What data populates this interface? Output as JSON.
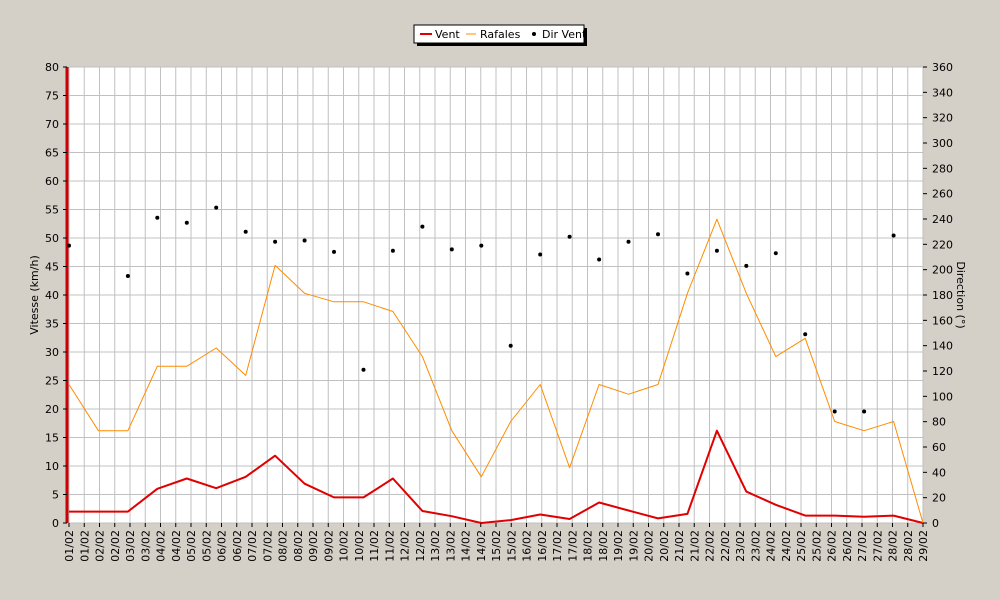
{
  "chart_data": {
    "type": "line",
    "x": [
      "01/02",
      "01/02",
      "02/02",
      "03/02",
      "04/02",
      "05/02",
      "06/02",
      "07/02",
      "08/02",
      "09/02",
      "10/02",
      "11/02",
      "12/02",
      "13/02",
      "14/02",
      "15/02",
      "16/02",
      "17/02",
      "18/02",
      "19/02",
      "20/02",
      "21/02",
      "22/02",
      "23/02",
      "24/02",
      "25/02",
      "26/02",
      "27/02",
      "28/02",
      "29/02"
    ],
    "x_tick_labels": [
      "01/02",
      "01/02",
      "02/02",
      "02/02",
      "03/02",
      "03/02",
      "04/02",
      "04/02",
      "05/02",
      "05/02",
      "06/02",
      "06/02",
      "07/02",
      "07/02",
      "08/02",
      "08/02",
      "09/02",
      "09/02",
      "10/02",
      "10/02",
      "11/02",
      "11/02",
      "12/02",
      "12/02",
      "13/02",
      "13/02",
      "14/02",
      "14/02",
      "15/02",
      "15/02",
      "16/02",
      "16/02",
      "17/02",
      "17/02",
      "18/02",
      "18/02",
      "19/02",
      "19/02",
      "20/02",
      "20/02",
      "21/02",
      "21/02",
      "22/02",
      "22/02",
      "23/02",
      "23/02",
      "24/02",
      "24/02",
      "25/02",
      "25/02",
      "26/02",
      "26/02",
      "27/02",
      "27/02",
      "28/02",
      "28/02",
      "29/02"
    ],
    "ylabel": "Vitesse (km/h)",
    "ylim": [
      0,
      80
    ],
    "y_ticks": [
      0,
      5,
      10,
      15,
      20,
      25,
      30,
      35,
      40,
      45,
      50,
      55,
      60,
      65,
      70,
      75,
      80
    ],
    "y2label": "Direction (°)",
    "y2lim": [
      0,
      360
    ],
    "y2_ticks": [
      0,
      20,
      40,
      60,
      80,
      100,
      120,
      140,
      160,
      180,
      200,
      220,
      240,
      260,
      280,
      300,
      320,
      340,
      360
    ],
    "grid": true,
    "legend_position": "top-center",
    "series": [
      {
        "name": "Vent",
        "kind": "line",
        "axis": "left",
        "color": "#e00000",
        "values": [
          2,
          2,
          2,
          6,
          7.8,
          6.1,
          8.1,
          11.8,
          6.9,
          4.5,
          4.5,
          7.8,
          2.1,
          1.2,
          0,
          0.5,
          1.5,
          0.7,
          3.6,
          2.2,
          0.8,
          1.6,
          16.2,
          5.5,
          3.2,
          1.3,
          1.3,
          1.1,
          1.3,
          0
        ]
      },
      {
        "name": "Rafales",
        "kind": "line",
        "axis": "left",
        "color": "#ff8c00",
        "values": [
          24.3,
          16.2,
          16.2,
          27.5,
          27.5,
          30.7,
          25.9,
          45.2,
          40.3,
          38.8,
          38.8,
          37.1,
          29.2,
          16.2,
          8.1,
          17.8,
          24.3,
          9.7,
          24.3,
          22.6,
          24.3,
          40.3,
          53.3,
          40.3,
          29.2,
          32.4,
          17.8,
          16.2,
          17.8,
          0
        ]
      },
      {
        "name": "Dir Vent",
        "kind": "scatter",
        "axis": "right",
        "color": "#000000",
        "values": [
          219,
          null,
          195,
          241,
          237,
          249,
          230,
          222,
          223,
          214,
          121,
          215,
          234,
          216,
          219,
          140,
          212,
          226,
          208,
          222,
          228,
          197,
          215,
          203,
          213,
          149,
          88,
          88,
          227,
          null
        ]
      }
    ]
  }
}
